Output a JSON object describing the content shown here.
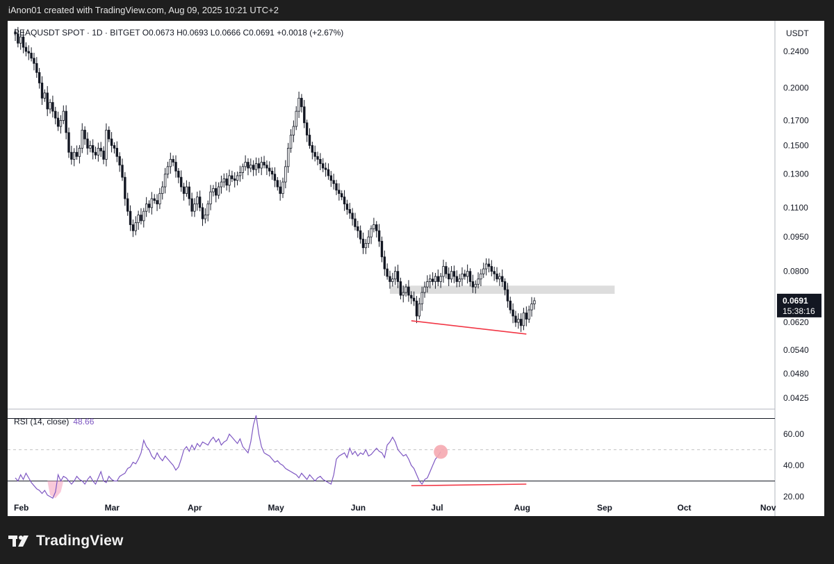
{
  "header": {
    "text": "iAnon01 created with TradingView.com, Aug 09, 2025 10:21 UTC+2"
  },
  "legend": {
    "main": "PEAQUSDT SPOT · 1D · BITGET  O0.0673  H0.0693  L0.0666  C0.0691  +0.0018 (+2.67%)",
    "rsi_label": "RSI (14, close)",
    "rsi_value": "48.66"
  },
  "footer": {
    "brand": "TradingView"
  },
  "colors": {
    "up": "#131722",
    "down": "#131722",
    "rsi_line": "#7e57c2",
    "divergence": "#f23645",
    "zone": "#d9d9d9",
    "pink_marker": "#f5a9b0"
  },
  "chart_data": [
    {
      "type": "candlestick",
      "title": "PEAQUSDT SPOT · 1D · BITGET",
      "y_axis_label": "USDT",
      "scale": "log",
      "y_ticks": [
        "0.2400",
        "0.2000",
        "0.1700",
        "0.1500",
        "0.1300",
        "0.1100",
        "0.0950",
        "0.0800",
        "0.0620",
        "0.0540",
        "0.0480",
        "0.0425"
      ],
      "y_tick_values": [
        0.24,
        0.2,
        0.17,
        0.15,
        0.13,
        0.11,
        0.095,
        0.08,
        0.062,
        0.054,
        0.048,
        0.0425
      ],
      "x_ticks": [
        "Feb",
        "Mar",
        "Apr",
        "May",
        "Jun",
        "Jul",
        "Aug",
        "Sep",
        "Oct",
        "Nov"
      ],
      "start_date": "2025-01-24",
      "last_price": {
        "value": "0.0691",
        "countdown": "15:38:16"
      },
      "closes": [
        0.262,
        0.25,
        0.258,
        0.245,
        0.24,
        0.238,
        0.232,
        0.226,
        0.216,
        0.205,
        0.19,
        0.195,
        0.18,
        0.186,
        0.178,
        0.172,
        0.165,
        0.17,
        0.178,
        0.16,
        0.145,
        0.14,
        0.145,
        0.142,
        0.148,
        0.162,
        0.155,
        0.148,
        0.15,
        0.145,
        0.143,
        0.148,
        0.146,
        0.14,
        0.162,
        0.155,
        0.15,
        0.148,
        0.142,
        0.136,
        0.128,
        0.115,
        0.108,
        0.101,
        0.098,
        0.102,
        0.106,
        0.103,
        0.108,
        0.112,
        0.11,
        0.115,
        0.114,
        0.112,
        0.118,
        0.122,
        0.13,
        0.135,
        0.14,
        0.138,
        0.132,
        0.128,
        0.122,
        0.118,
        0.122,
        0.115,
        0.108,
        0.112,
        0.116,
        0.11,
        0.104,
        0.106,
        0.112,
        0.119,
        0.121,
        0.117,
        0.122,
        0.125,
        0.127,
        0.123,
        0.129,
        0.127,
        0.126,
        0.129,
        0.131,
        0.135,
        0.138,
        0.134,
        0.136,
        0.133,
        0.137,
        0.134,
        0.138,
        0.136,
        0.134,
        0.132,
        0.13,
        0.126,
        0.122,
        0.118,
        0.125,
        0.135,
        0.148,
        0.158,
        0.165,
        0.178,
        0.19,
        0.182,
        0.168,
        0.158,
        0.15,
        0.145,
        0.142,
        0.14,
        0.137,
        0.134,
        0.133,
        0.129,
        0.126,
        0.124,
        0.12,
        0.118,
        0.116,
        0.112,
        0.109,
        0.107,
        0.104,
        0.1,
        0.098,
        0.094,
        0.09,
        0.092,
        0.095,
        0.099,
        0.101,
        0.098,
        0.093,
        0.086,
        0.081,
        0.078,
        0.076,
        0.077,
        0.08,
        0.076,
        0.071,
        0.072,
        0.074,
        0.071,
        0.07,
        0.069,
        0.064,
        0.068,
        0.072,
        0.074,
        0.076,
        0.077,
        0.076,
        0.078,
        0.076,
        0.078,
        0.082,
        0.079,
        0.077,
        0.08,
        0.078,
        0.076,
        0.077,
        0.079,
        0.078,
        0.08,
        0.076,
        0.074,
        0.075,
        0.077,
        0.079,
        0.081,
        0.083,
        0.082,
        0.08,
        0.079,
        0.077,
        0.078,
        0.076,
        0.073,
        0.069,
        0.066,
        0.064,
        0.062,
        0.063,
        0.061,
        0.065,
        0.063,
        0.066,
        0.068,
        0.0691
      ],
      "support_zone": {
        "low": 0.0715,
        "high": 0.0745
      },
      "divergence_line": [
        {
          "date": "2025-06-21",
          "price": 0.0625
        },
        {
          "date": "2025-08-03",
          "price": 0.0585
        }
      ]
    },
    {
      "type": "line",
      "title": "RSI (14, close)",
      "last_value": 48.66,
      "y_ticks": [
        "60.00",
        "40.00",
        "20.00"
      ],
      "y_tick_values": [
        60,
        40,
        20
      ],
      "levels": [
        70,
        50,
        30
      ],
      "values": [
        32,
        30,
        34,
        31,
        35,
        32,
        29,
        27,
        25,
        24,
        22,
        24,
        21,
        20,
        19,
        23,
        34,
        30,
        33,
        32,
        30,
        28,
        30,
        33,
        31,
        30,
        28,
        31,
        33,
        30,
        28,
        32,
        36,
        30,
        29,
        33,
        31,
        30,
        30,
        33,
        34,
        35,
        38,
        39,
        42,
        41,
        44,
        48,
        56,
        52,
        50,
        46,
        44,
        48,
        45,
        43,
        46,
        44,
        42,
        40,
        37,
        39,
        44,
        50,
        52,
        49,
        53,
        50,
        54,
        52,
        55,
        54,
        53,
        56,
        58,
        55,
        57,
        53,
        55,
        56,
        60,
        58,
        56,
        54,
        57,
        52,
        50,
        48,
        55,
        66,
        72,
        60,
        52,
        48,
        47,
        46,
        44,
        42,
        43,
        41,
        40,
        38,
        37,
        36,
        35,
        34,
        32,
        35,
        33,
        31,
        34,
        32,
        30,
        32,
        33,
        31,
        30,
        29,
        28,
        34,
        44,
        46,
        47,
        48,
        45,
        51,
        47,
        49,
        46,
        48,
        47,
        50,
        46,
        47,
        49,
        51,
        49,
        48,
        45,
        53,
        55,
        58,
        55,
        50,
        48,
        46,
        47,
        44,
        40,
        38,
        34,
        30,
        28,
        31,
        32,
        36,
        40,
        44,
        46,
        48.66
      ],
      "divergence_line": [
        {
          "date": "2025-06-21",
          "value": 27
        },
        {
          "date": "2025-08-03",
          "value": 28
        }
      ]
    }
  ]
}
